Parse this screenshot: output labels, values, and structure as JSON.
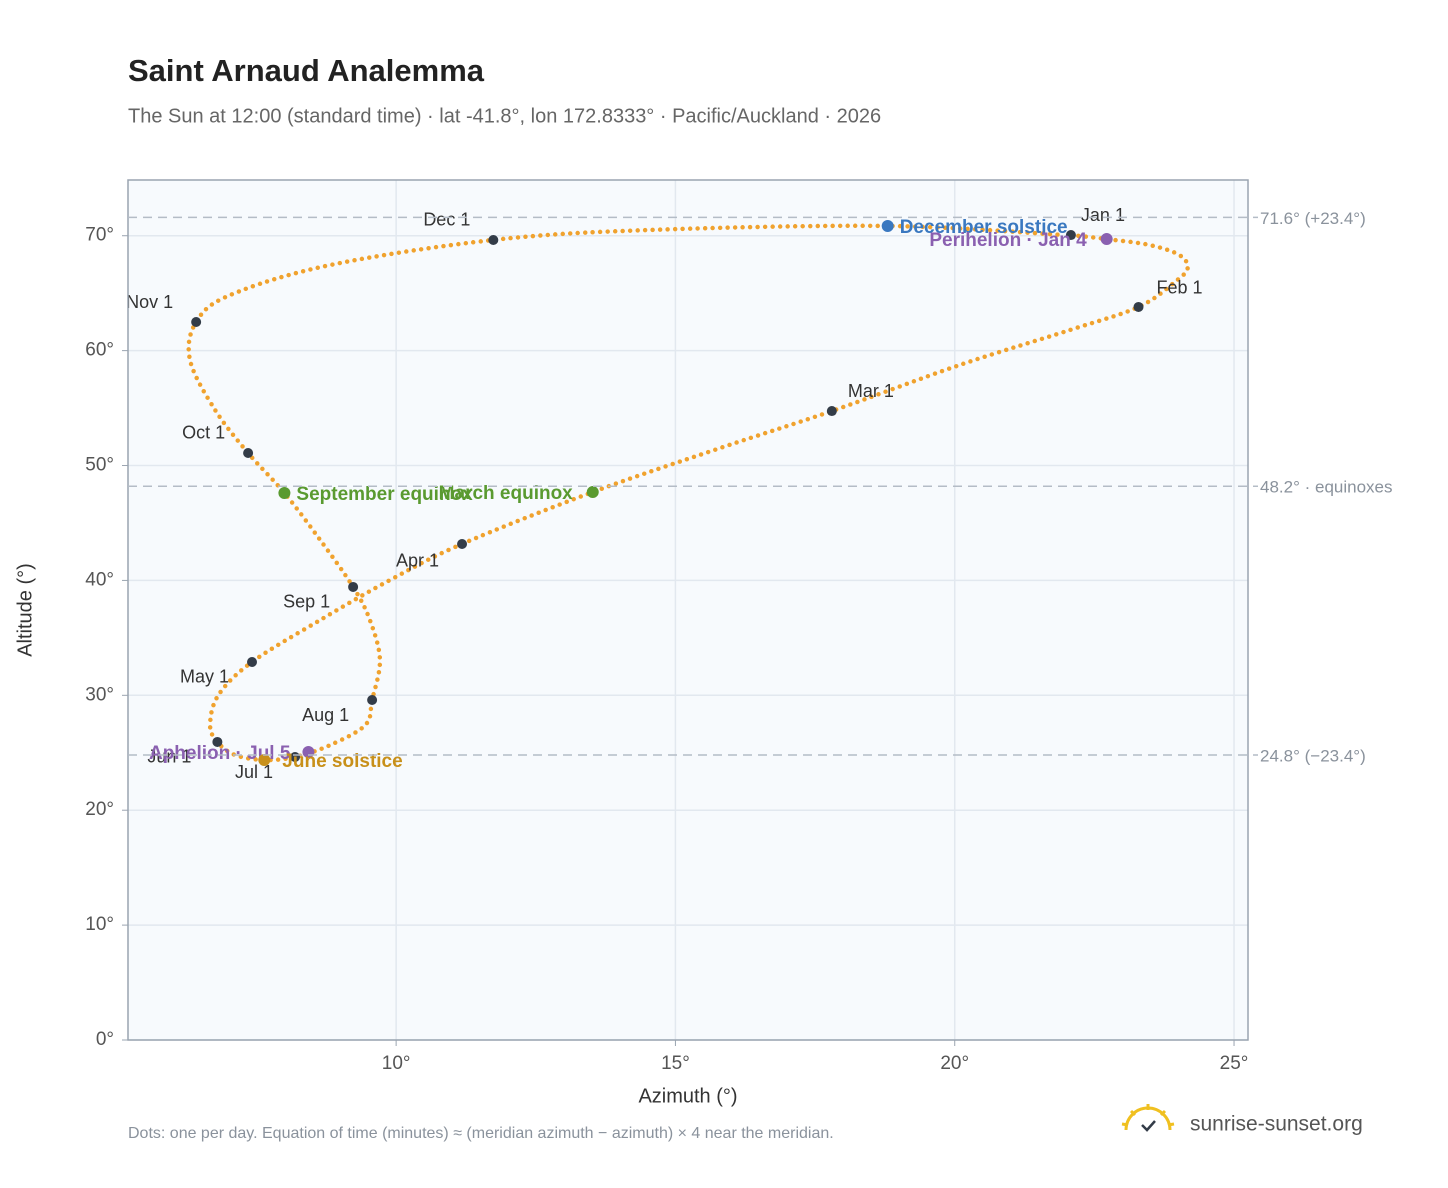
{
  "chart_data": {
    "type": "analemma",
    "title": "Saint Arnaud Analemma",
    "subtitle": "The Sun at 12:00 (standard time) · lat -41.8°, lon 172.8333° · Pacific/Auckland · 2026",
    "x_label": "Azimuth (°)",
    "y_label": "Altitude (°)",
    "footnote": "Dots: one per day. Equation of time (minutes) ≈ (meridian azimuth − azimuth) × 4 near the meridian.",
    "brand": "sunrise-sunset.org",
    "xlim": [
      5.2,
      25.25
    ],
    "ylim": [
      0,
      74.85
    ],
    "xticks": [
      {
        "value": 10,
        "label": "10°"
      },
      {
        "value": 15,
        "label": "15°"
      },
      {
        "value": 20,
        "label": "20°"
      },
      {
        "value": 25,
        "label": "25°"
      }
    ],
    "yticks": [
      {
        "value": 0,
        "label": "0°"
      },
      {
        "value": 10,
        "label": "10°"
      },
      {
        "value": 20,
        "label": "20°"
      },
      {
        "value": 30,
        "label": "30°"
      },
      {
        "value": 40,
        "label": "40°"
      },
      {
        "value": 50,
        "label": "50°"
      },
      {
        "value": 60,
        "label": "60°"
      },
      {
        "value": 70,
        "label": "70°"
      }
    ],
    "grid": true,
    "reference_lines": [
      {
        "value": 71.6,
        "label": "71.6° (+23.4°)"
      },
      {
        "value": 48.2,
        "label": "48.2° · equinoxes"
      },
      {
        "value": 24.8,
        "label": "24.8° (−23.4°)"
      }
    ],
    "sun_path": {
      "color": "#f0a22e",
      "x": [
        22.08,
        22.72,
        23.49,
        24.02,
        24.17,
        23.94,
        23.29,
        22.06,
        20.09,
        17.8,
        15.8,
        13.52,
        11.18,
        9.89,
        8.64,
        7.42,
        6.82,
        6.67,
        6.8,
        7.12,
        7.64,
        8.19,
        8.82,
        9.45,
        9.57,
        9.71,
        9.53,
        9.23,
        8.64,
        8.0,
        7.35,
        6.76,
        6.31,
        6.42,
        7.03,
        8.82,
        11.74,
        14.54,
        18.8,
        21.97
      ],
      "y": [
        70.06,
        69.71,
        69.19,
        68.32,
        67.19,
        65.97,
        63.8,
        61.79,
        58.75,
        54.74,
        51.52,
        47.69,
        43.17,
        40.03,
        36.55,
        32.9,
        30.03,
        27.42,
        25.94,
        24.8,
        24.37,
        24.63,
        25.67,
        27.42,
        29.59,
        33.07,
        36.55,
        39.43,
        43.52,
        47.61,
        51.09,
        54.83,
        59.18,
        62.49,
        64.84,
        67.45,
        69.63,
        70.5,
        70.85,
        70.06
      ]
    },
    "month_markers": {
      "color": "#333c48",
      "labels": [
        "Jan 1",
        "Feb 1",
        "Mar 1",
        "Apr 1",
        "May 1",
        "Jun 1",
        "Jul 1",
        "Aug 1",
        "Sep 1",
        "Oct 1",
        "Nov 1",
        "Dec 1"
      ],
      "x": [
        22.08,
        23.29,
        17.8,
        11.18,
        7.42,
        6.8,
        8.19,
        9.57,
        9.23,
        7.35,
        6.42,
        11.74
      ],
      "y": [
        70.06,
        63.8,
        54.74,
        43.17,
        32.9,
        25.94,
        24.63,
        29.59,
        39.43,
        51.09,
        62.49,
        69.63
      ]
    },
    "events": [
      {
        "label": "December solstice",
        "x": 18.8,
        "y": 70.85,
        "color": "#3a78c0"
      },
      {
        "label": "Perihelion · Jan 4",
        "x": 22.72,
        "y": 69.71,
        "color": "#8a60b0"
      },
      {
        "label": "March equinox",
        "x": 13.52,
        "y": 47.69,
        "color": "#5a9a30"
      },
      {
        "label": "September equinox",
        "x": 8.0,
        "y": 47.61,
        "color": "#5a9a30"
      },
      {
        "label": "Aphelion · Jul 5",
        "x": 8.43,
        "y": 25.07,
        "color": "#8a60b0"
      },
      {
        "label": "June solstice",
        "x": 7.64,
        "y": 24.37,
        "color": "#c8901a"
      }
    ]
  }
}
